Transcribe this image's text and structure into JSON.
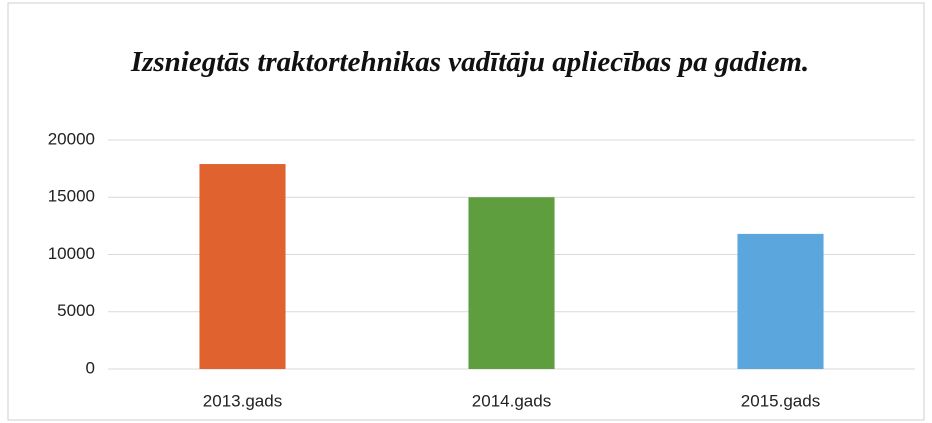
{
  "chart_data": {
    "type": "bar",
    "title": "Izsniegtās traktortehnikas vadītāju apliecības pa gadiem.",
    "categories": [
      "2013.gads",
      "2014.gads",
      "2015.gads"
    ],
    "values": [
      17900,
      15000,
      11800
    ],
    "colors": [
      "#e0622e",
      "#5f9e3f",
      "#5aa6dd"
    ],
    "ylim": [
      0,
      20000
    ],
    "yticks": [
      0,
      5000,
      10000,
      15000,
      20000
    ],
    "grid": true
  }
}
